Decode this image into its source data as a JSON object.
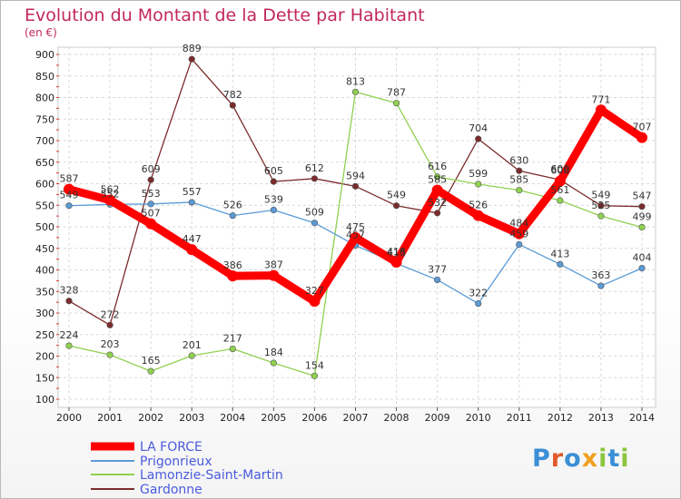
{
  "chart_data": {
    "type": "line",
    "title": "Evolution du Montant de la Dette par Habitant",
    "subtitle": "(en €)",
    "categories": [
      "2000",
      "2001",
      "2002",
      "2003",
      "2004",
      "2005",
      "2006",
      "2007",
      "2008",
      "2009",
      "2010",
      "2011",
      "2012",
      "2013",
      "2014"
    ],
    "ylim": [
      100,
      900
    ],
    "yticks": [
      100,
      150,
      200,
      250,
      300,
      350,
      400,
      450,
      500,
      550,
      600,
      650,
      700,
      750,
      800,
      850,
      900
    ],
    "grid": true,
    "legend_position": "bottom-left",
    "series": [
      {
        "name": "LA FORCE",
        "color": "#ff0000",
        "values": [
          587,
          562,
          507,
          447,
          386,
          387,
          327,
          475,
          418,
          585,
          526,
          484,
          606,
          771,
          707
        ]
      },
      {
        "name": "Prigonrieux",
        "color": "#5b9bd5",
        "values": [
          549,
          552,
          553,
          557,
          526,
          539,
          509,
          457,
          415,
          377,
          322,
          459,
          413,
          363,
          404
        ]
      },
      {
        "name": "Lamonzie-Saint-Martin",
        "color": "#8fd14f",
        "values": [
          224,
          203,
          165,
          201,
          217,
          184,
          154,
          813,
          787,
          616,
          599,
          585,
          561,
          525,
          499
        ]
      },
      {
        "name": "Gardonne",
        "color": "#7b2b2b",
        "values": [
          328,
          272,
          609,
          889,
          782,
          605,
          612,
          594,
          549,
          532,
          704,
          630,
          609,
          549,
          547
        ]
      }
    ]
  },
  "logo": {
    "letters": [
      "P",
      "r",
      "o",
      "x",
      "i",
      "t",
      "i"
    ],
    "colors": [
      "#3a8fd6",
      "#e05a2a",
      "#3a8fd6",
      "#f0a020",
      "#8cc63f",
      "#3a8fd6",
      "#8cc63f"
    ]
  }
}
